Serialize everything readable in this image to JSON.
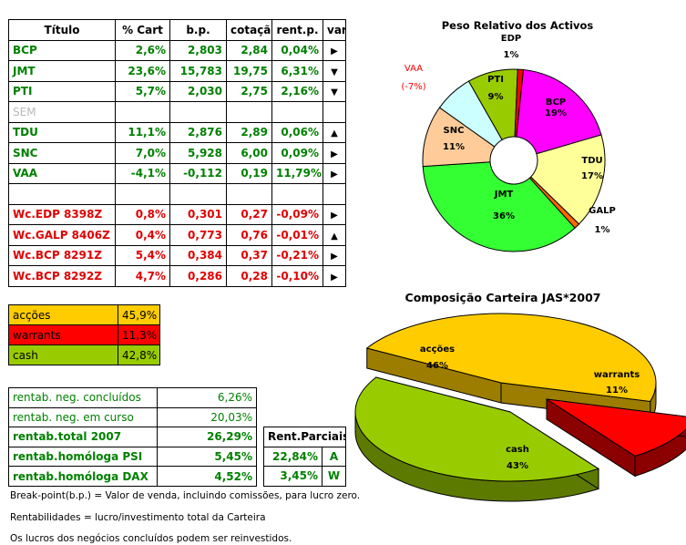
{
  "holdings": {
    "headers": [
      "Título",
      "% Cart",
      "b.p.",
      "cotação",
      "rent.p.",
      "var."
    ],
    "rows": [
      {
        "name": "BCP",
        "pct": "2,6%",
        "bp": "2,803",
        "cot": "2,84",
        "rent": "0,04%",
        "var": "right-arrow",
        "glyph": "▶"
      },
      {
        "name": "JMT",
        "pct": "23,6%",
        "bp": "15,783",
        "cot": "19,75",
        "rent": "6,31%",
        "var": "down-arrow",
        "glyph": "▼"
      },
      {
        "name": "PTI",
        "pct": "5,7%",
        "bp": "2,030",
        "cot": "2,75",
        "rent": "2,16%",
        "var": "down-arrow",
        "glyph": "▼"
      },
      {
        "name": "SEM",
        "pct": "",
        "bp": "",
        "cot": "",
        "rent": "",
        "var": "",
        "glyph": ""
      },
      {
        "name": "TDU",
        "pct": "11,1%",
        "bp": "2,876",
        "cot": "2,89",
        "rent": "0,06%",
        "var": "up-arrow",
        "glyph": "▲"
      },
      {
        "name": "SNC",
        "pct": "7,0%",
        "bp": "5,928",
        "cot": "6,00",
        "rent": "0,09%",
        "var": "right-arrow",
        "glyph": "▶"
      },
      {
        "name": "VAA",
        "pct": "-4,1%",
        "bp": "-0,112",
        "cot": "0,19",
        "rent": "11,79%",
        "var": "right-arrow",
        "glyph": "▶"
      },
      {
        "name": "",
        "pct": "",
        "bp": "",
        "cot": "",
        "rent": "",
        "var": "",
        "glyph": ""
      },
      {
        "name": "Wc.EDP 8398Z",
        "pct": "0,8%",
        "bp": "0,301",
        "cot": "0,27",
        "rent": "-0,09%",
        "var": "right-arrow",
        "glyph": "▶"
      },
      {
        "name": "Wc.GALP 8406Z",
        "pct": "0,4%",
        "bp": "0,773",
        "cot": "0,76",
        "rent": "-0,01%",
        "var": "up-arrow",
        "glyph": "▲"
      },
      {
        "name": "Wc.BCP 8291Z",
        "pct": "5,4%",
        "bp": "0,384",
        "cot": "0,37",
        "rent": "-0,21%",
        "var": "right-arrow",
        "glyph": "▶"
      },
      {
        "name": "Wc.BCP 8292Z",
        "pct": "4,7%",
        "bp": "0,286",
        "cot": "0,28",
        "rent": "-0,10%",
        "var": "right-arrow",
        "glyph": "▶"
      }
    ]
  },
  "allocation": [
    {
      "label": "acções",
      "value": "45,9%",
      "color": "#ffcc00"
    },
    {
      "label": "warrants",
      "value": "11,3%",
      "color": "#ff0000"
    },
    {
      "label": "cash",
      "value": "42,8%",
      "color": "#99cc00"
    }
  ],
  "performance": [
    {
      "label": "rentab. neg. concluídos",
      "value": "6,26%"
    },
    {
      "label": "rentab. neg. em curso",
      "value": "20,03%"
    },
    {
      "label": "rentab.total 2007",
      "value": "26,29%"
    },
    {
      "label": "rentab.homóloga PSI",
      "value": "5,45%"
    },
    {
      "label": "rentab.homóloga DAX",
      "value": "4,52%"
    }
  ],
  "parciais": {
    "header": "Rent.Parciais",
    "rows": [
      {
        "value": "22,84%",
        "letter": "A"
      },
      {
        "value": "3,45%",
        "letter": "W"
      }
    ]
  },
  "notes": [
    "Break-point(b.p.) = Valor de venda, incluindo comissões, para lucro zero.",
    "Rentabilidades = lucro/investimento total da Carteira",
    "Os lucros dos negócios concluídos podem ser reinvestidos."
  ],
  "colors": {
    "green": "#008000",
    "red": "#e00000",
    "gray": "#b8b8b8"
  },
  "chart_data": [
    {
      "type": "pie",
      "variant": "donut",
      "title": "Peso Relativo dos Activos",
      "slices": [
        {
          "label": "BCP",
          "value": 19,
          "text": "19%",
          "color": "#ff00ff"
        },
        {
          "label": "TDU",
          "value": 17,
          "text": "17%",
          "color": "#ffff99"
        },
        {
          "label": "GALP",
          "value": 1,
          "text": "1%",
          "color": "#ff6600"
        },
        {
          "label": "JMT",
          "value": 36,
          "text": "36%",
          "color": "#33ff33"
        },
        {
          "label": "SNC",
          "value": 11,
          "text": "11%",
          "color": "#ffcc99"
        },
        {
          "label": "VAA",
          "value": 7,
          "text": "(-7%)",
          "color": "#ccffff"
        },
        {
          "label": "PTI",
          "value": 9,
          "text": "9%",
          "color": "#99cc00"
        },
        {
          "label": "EDP",
          "value": 1,
          "text": "1%",
          "color": "#ff0000"
        }
      ]
    },
    {
      "type": "pie",
      "variant": "3d-exploded",
      "title": "Composição Carteira JAS*2007",
      "slices": [
        {
          "label": "acções",
          "value": 46,
          "text": "46%",
          "color": "#ffcc00"
        },
        {
          "label": "warrants",
          "value": 11,
          "text": "11%",
          "color": "#ff0000"
        },
        {
          "label": "cash",
          "value": 43,
          "text": "43%",
          "color": "#99cc00"
        }
      ]
    }
  ]
}
